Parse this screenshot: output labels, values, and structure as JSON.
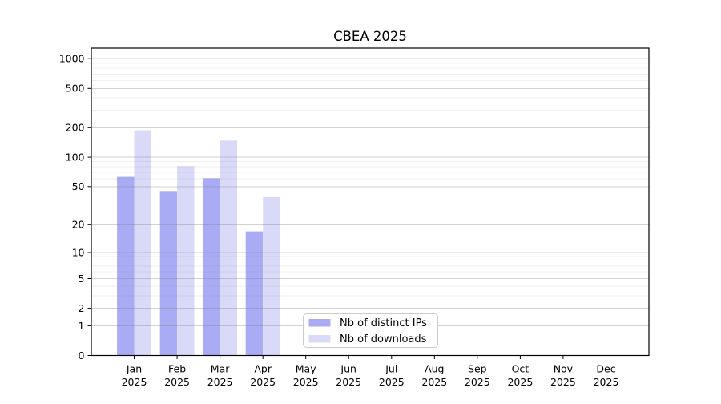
{
  "chart_data": {
    "type": "bar",
    "title": "CBEA 2025",
    "categories": [
      "Jan",
      "Feb",
      "Mar",
      "Apr",
      "May",
      "Jun",
      "Jul",
      "Aug",
      "Sep",
      "Oct",
      "Nov",
      "Dec"
    ],
    "category_sublabel": "2025",
    "series": [
      {
        "name": "Nb of distinct IPs",
        "color": "#aaabf5",
        "values": [
          63,
          45,
          61,
          17,
          0,
          0,
          0,
          0,
          0,
          0,
          0,
          0
        ]
      },
      {
        "name": "Nb of downloads",
        "color": "#d9daf8",
        "values": [
          188,
          81,
          148,
          39,
          0,
          0,
          0,
          0,
          0,
          0,
          0,
          0
        ]
      }
    ],
    "yscale": "log1p",
    "ylim": [
      0,
      1280
    ],
    "y_ticks": [
      0,
      1,
      2,
      5,
      10,
      20,
      50,
      100,
      200,
      500,
      1000
    ],
    "y_minor_ticks": [
      3,
      4,
      6,
      7,
      8,
      9,
      30,
      40,
      60,
      70,
      80,
      90,
      300,
      400,
      600,
      700,
      800,
      900
    ],
    "grid": true,
    "legend_position": "lower center-left",
    "colors": {
      "axis": "#000000",
      "grid_major": "#808080",
      "grid_minor": "#808080",
      "legend_border": "#cccccc",
      "legend_bg": "#ffffff",
      "background": "#ffffff"
    }
  }
}
